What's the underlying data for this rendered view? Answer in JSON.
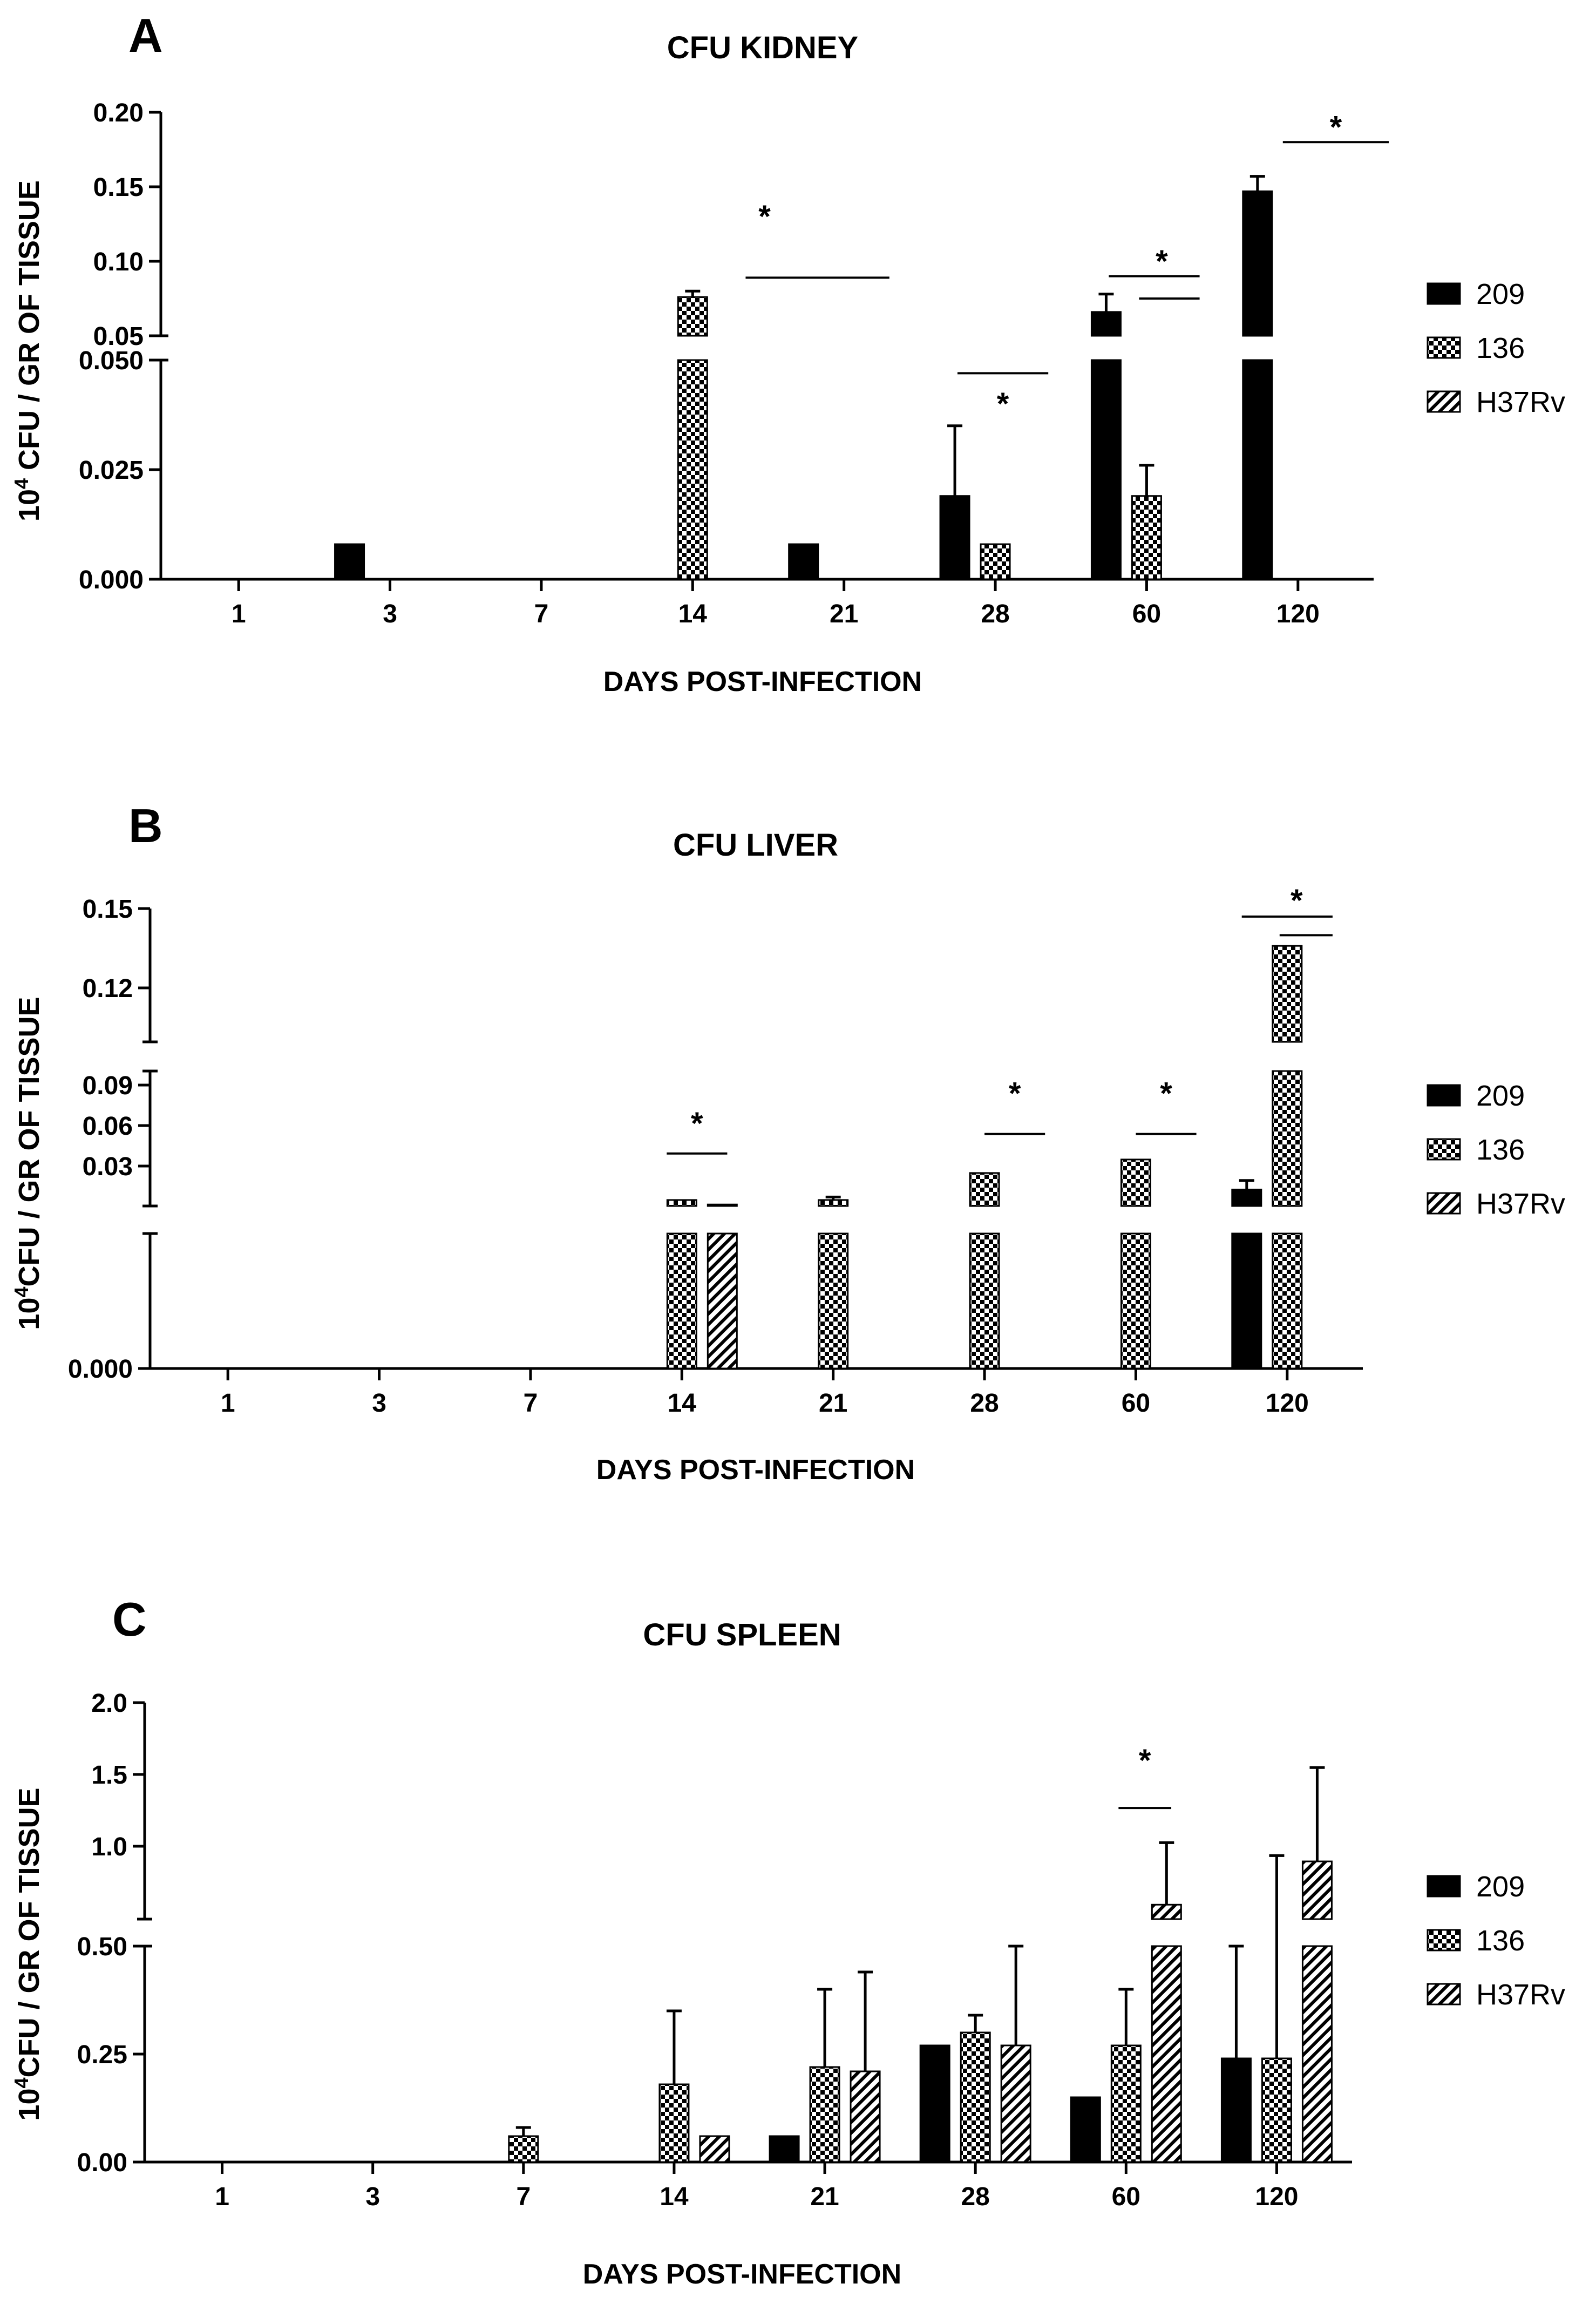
{
  "legend": [
    "209",
    "136",
    "H37Rv"
  ],
  "series_styles": {
    "209": "solid",
    "136": "checker",
    "H37Rv": "hatch"
  },
  "colors": {
    "ink": "#000000",
    "background": "#ffffff"
  },
  "chart_data": [
    {
      "panel": "A",
      "type": "bar",
      "title": "CFU KIDNEY",
      "xlabel": "DAYS POST-INFECTION",
      "ylabel_base": "10",
      "ylabel_sup": "4",
      "ylabel_rest": " CFU / GR OF TISSUE",
      "categories": [
        "1",
        "3",
        "7",
        "14",
        "21",
        "28",
        "60",
        "120"
      ],
      "y_segments": [
        {
          "range": [
            0,
            0.05
          ],
          "ticks": [
            "0.000",
            "0.025",
            "0.050"
          ]
        },
        {
          "range": [
            0.05,
            0.2
          ],
          "ticks": [
            "0.05",
            "0.10",
            "0.15",
            "0.20"
          ]
        }
      ],
      "series": [
        {
          "name": "209",
          "values": [
            0,
            0.008,
            0,
            0,
            0.008,
            0.019,
            0.066,
            0.147
          ],
          "errors": [
            0,
            0,
            0,
            0,
            0,
            0.016,
            0.012,
            0.01
          ]
        },
        {
          "name": "136",
          "values": [
            0,
            0,
            0,
            0.076,
            0,
            0.008,
            0.019,
            0
          ],
          "errors": [
            0,
            0,
            0,
            0.004,
            0,
            0,
            0.007,
            0
          ]
        },
        {
          "name": "H37Rv",
          "values": [
            0,
            0,
            0,
            0,
            0,
            0,
            0,
            0
          ],
          "errors": [
            0,
            0,
            0,
            0,
            0,
            0,
            0,
            0
          ]
        }
      ],
      "significance": [
        {
          "category": "14",
          "label": "*",
          "lines": [
            [
              0.35,
              1.3,
              0.089
            ]
          ],
          "star_y": 0.13
        },
        {
          "category": "28",
          "label": "*",
          "lines": [
            [
              -0.25,
              0.35,
              0.047
            ]
          ],
          "star_y": 0.04
        },
        {
          "category": "60",
          "label": "*",
          "lines": [
            [
              -0.25,
              0.35,
              0.09
            ],
            [
              -0.05,
              0.35,
              0.075
            ]
          ],
          "star_y": 0.1
        },
        {
          "category": "120",
          "label": "*",
          "lines": [
            [
              -0.1,
              0.6,
              0.18
            ]
          ],
          "star_y": 0.19
        }
      ]
    },
    {
      "panel": "B",
      "type": "bar",
      "title": "CFU LIVER",
      "xlabel": "DAYS POST-INFECTION",
      "ylabel_base": "10",
      "ylabel_sup": "4",
      "ylabel_rest": "CFU / GR OF TISSUE",
      "categories": [
        "1",
        "3",
        "7",
        "14",
        "21",
        "28",
        "60",
        "120"
      ],
      "y_segments": [
        {
          "range": [
            0,
            0.01
          ],
          "ticks": [
            "0.000"
          ]
        },
        {
          "range": [
            0.01,
            0.1
          ],
          "ticks": [
            "0.03",
            "0.06",
            "0.09"
          ]
        },
        {
          "range": [
            0.1,
            0.15
          ],
          "ticks": [
            "0.12",
            "0.15"
          ]
        }
      ],
      "series": [
        {
          "name": "209",
          "values": [
            0,
            0,
            0,
            0,
            0,
            0,
            0,
            0.021
          ],
          "errors": [
            0,
            0,
            0,
            0,
            0,
            0,
            0,
            0.006
          ]
        },
        {
          "name": "136",
          "values": [
            0,
            0,
            0,
            0.014,
            0.014,
            0.032,
            0.041,
            0.136
          ],
          "errors": [
            0,
            0,
            0,
            0,
            0.002,
            0,
            0,
            0
          ]
        },
        {
          "name": "H37Rv",
          "values": [
            0,
            0,
            0,
            0.011,
            0,
            0,
            0,
            0
          ],
          "errors": [
            0,
            0,
            0,
            0,
            0,
            0,
            0,
            0
          ]
        }
      ],
      "significance": [
        {
          "category": "14",
          "label": "*",
          "lines": [
            [
              -0.1,
              0.3,
              0.045
            ]
          ],
          "star_y": 0.065
        },
        {
          "category": "28",
          "label": "*",
          "lines": [
            [
              0,
              0.4,
              0.058
            ]
          ],
          "star_y": 0.085
        },
        {
          "category": "60",
          "label": "*",
          "lines": [
            [
              0,
              0.4,
              0.058
            ]
          ],
          "star_y": 0.085
        },
        {
          "category": "120",
          "label": "*",
          "lines": [
            [
              -0.3,
              0.3,
              0.147
            ],
            [
              -0.05,
              0.3,
              0.14
            ]
          ],
          "star_y": 0.153
        }
      ]
    },
    {
      "panel": "C",
      "type": "bar",
      "title": "CFU SPLEEN",
      "xlabel": "DAYS POST-INFECTION",
      "ylabel_base": "10",
      "ylabel_sup": "4",
      "ylabel_rest": "CFU / GR OF TISSUE",
      "categories": [
        "1",
        "3",
        "7",
        "14",
        "21",
        "28",
        "60",
        "120"
      ],
      "y_segments": [
        {
          "range": [
            0,
            0.5
          ],
          "ticks": [
            "0.00",
            "0.25",
            "0.50"
          ]
        },
        {
          "range": [
            0.5,
            2.0
          ],
          "ticks": [
            "1.0",
            "1.5",
            "2.0"
          ]
        }
      ],
      "series": [
        {
          "name": "209",
          "values": [
            0,
            0,
            0,
            0,
            0.06,
            0.27,
            0.15,
            0.24
          ],
          "errors": [
            0,
            0,
            0,
            0,
            0,
            0,
            0,
            0.26
          ]
        },
        {
          "name": "136",
          "values": [
            0,
            0,
            0.06,
            0.18,
            0.22,
            0.3,
            0.27,
            0.24
          ],
          "errors": [
            0,
            0,
            0.02,
            0.17,
            0.18,
            0.04,
            0.13,
            0.7
          ]
        },
        {
          "name": "H37Rv",
          "values": [
            0,
            0,
            0,
            0.06,
            0.21,
            0.27,
            0.6,
            0.9
          ],
          "errors": [
            0,
            0,
            0,
            0,
            0.23,
            0.23,
            0.43,
            0.65
          ]
        }
      ],
      "significance": [
        {
          "category": "60",
          "label": "*",
          "lines": [
            [
              -0.05,
              0.3,
              1.27
            ]
          ],
          "star_y": 1.6
        }
      ]
    }
  ]
}
